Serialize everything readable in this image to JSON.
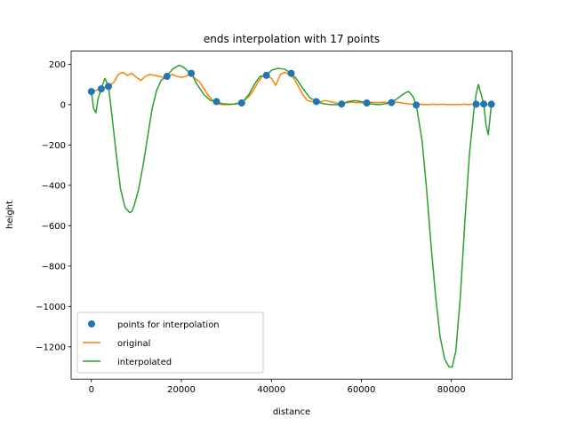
{
  "chart_data": {
    "type": "line",
    "title": "ends interpolation with 17 points",
    "xlabel": "distance",
    "ylabel": "height",
    "xlim": [
      -4500,
      93500
    ],
    "ylim": [
      -1360,
      265
    ],
    "xticks": [
      0,
      20000,
      40000,
      60000,
      80000
    ],
    "xtick_labels": [
      "0",
      "20000",
      "40000",
      "60000",
      "80000"
    ],
    "yticks": [
      200,
      0,
      -200,
      -400,
      -600,
      -800,
      -1000,
      -1200
    ],
    "ytick_labels": [
      "200",
      "0",
      "−200",
      "−400",
      "−600",
      "−800",
      "−1000",
      "−1200"
    ],
    "grid": false,
    "legend_position": "lower-left",
    "series": [
      {
        "name": "points for interpolation",
        "kind": "scatter",
        "color": "#1f77b4",
        "x": [
          0,
          2200,
          3800,
          16800,
          22200,
          27800,
          33400,
          38900,
          44400,
          50000,
          55600,
          61200,
          66700,
          72200,
          85500,
          87200,
          88900
        ],
        "y": [
          65,
          78,
          90,
          140,
          155,
          15,
          8,
          145,
          155,
          15,
          3,
          8,
          10,
          -2,
          2,
          3,
          2
        ]
      },
      {
        "name": "original",
        "kind": "line",
        "color": "#ff7f0e",
        "x": [
          0,
          1000,
          2000,
          3000,
          4000,
          5000,
          6000,
          7000,
          8000,
          9000,
          10000,
          11000,
          12000,
          13000,
          14000,
          15000,
          16000,
          17000,
          18000,
          19000,
          20000,
          21000,
          22000,
          23000,
          24000,
          25000,
          26000,
          27000,
          28000,
          29000,
          30000,
          31000,
          32000,
          33000,
          34000,
          35000,
          36000,
          37000,
          38000,
          39000,
          40000,
          41000,
          42000,
          43000,
          44000,
          45000,
          46000,
          47000,
          48000,
          49000,
          50000,
          51000,
          52000,
          53000,
          54000,
          55000,
          56000,
          57000,
          58000,
          59000,
          60000,
          61000,
          62000,
          63000,
          64000,
          65000,
          66000,
          67000,
          68000,
          69000,
          70000,
          71000,
          72000,
          73000,
          74000,
          75000,
          76000,
          77000,
          78000,
          79000,
          80000,
          81000,
          82000,
          83000,
          84000,
          85000,
          86000,
          87000,
          88000,
          88900
        ],
        "y": [
          65,
          70,
          80,
          85,
          95,
          110,
          150,
          160,
          145,
          155,
          135,
          120,
          140,
          150,
          145,
          140,
          135,
          140,
          150,
          140,
          135,
          140,
          155,
          130,
          115,
          80,
          45,
          20,
          5,
          0,
          0,
          0,
          5,
          10,
          20,
          40,
          70,
          110,
          140,
          145,
          130,
          95,
          150,
          160,
          150,
          130,
          90,
          50,
          20,
          15,
          15,
          15,
          20,
          15,
          10,
          5,
          8,
          10,
          12,
          10,
          10,
          8,
          12,
          10,
          10,
          12,
          10,
          10,
          12,
          8,
          5,
          3,
          0,
          2,
          0,
          0,
          2,
          0,
          2,
          0,
          0,
          0,
          0,
          2,
          0,
          3,
          5,
          2,
          0,
          2
        ]
      },
      {
        "name": "interpolated",
        "kind": "line",
        "color": "#2ca02c",
        "x": [
          0,
          500,
          1000,
          1500,
          2200,
          3000,
          3800,
          4500,
          5500,
          6500,
          7500,
          8500,
          9000,
          9500,
          10500,
          11500,
          12500,
          13500,
          14500,
          15500,
          16800,
          18000,
          19500,
          20500,
          21500,
          22200,
          23500,
          25000,
          26500,
          27800,
          29000,
          30500,
          32000,
          33400,
          35000,
          36500,
          37500,
          38900,
          40000,
          41500,
          43000,
          44400,
          45500,
          47000,
          48500,
          50000,
          51500,
          53000,
          54500,
          55600,
          57000,
          58500,
          60000,
          61200,
          62500,
          64000,
          65500,
          66700,
          68000,
          69500,
          70500,
          71500,
          72200,
          73500,
          74500,
          75500,
          76500,
          77500,
          78500,
          79500,
          80200,
          81000,
          82000,
          83000,
          84000,
          85000,
          85500,
          86000,
          86500,
          87200,
          87700,
          88200,
          88900
        ],
        "y": [
          65,
          -20,
          -40,
          30,
          78,
          130,
          90,
          -40,
          -240,
          -420,
          -510,
          -535,
          -530,
          -500,
          -420,
          -300,
          -160,
          -20,
          70,
          120,
          140,
          175,
          195,
          185,
          165,
          155,
          100,
          50,
          20,
          15,
          5,
          2,
          3,
          8,
          50,
          110,
          140,
          145,
          170,
          180,
          175,
          155,
          130,
          80,
          35,
          15,
          5,
          0,
          0,
          3,
          15,
          20,
          15,
          8,
          2,
          0,
          5,
          10,
          30,
          55,
          65,
          40,
          -2,
          -180,
          -420,
          -700,
          -950,
          -1150,
          -1260,
          -1300,
          -1300,
          -1220,
          -950,
          -580,
          -250,
          -30,
          50,
          100,
          60,
          3,
          -100,
          -150,
          2
        ]
      }
    ]
  }
}
